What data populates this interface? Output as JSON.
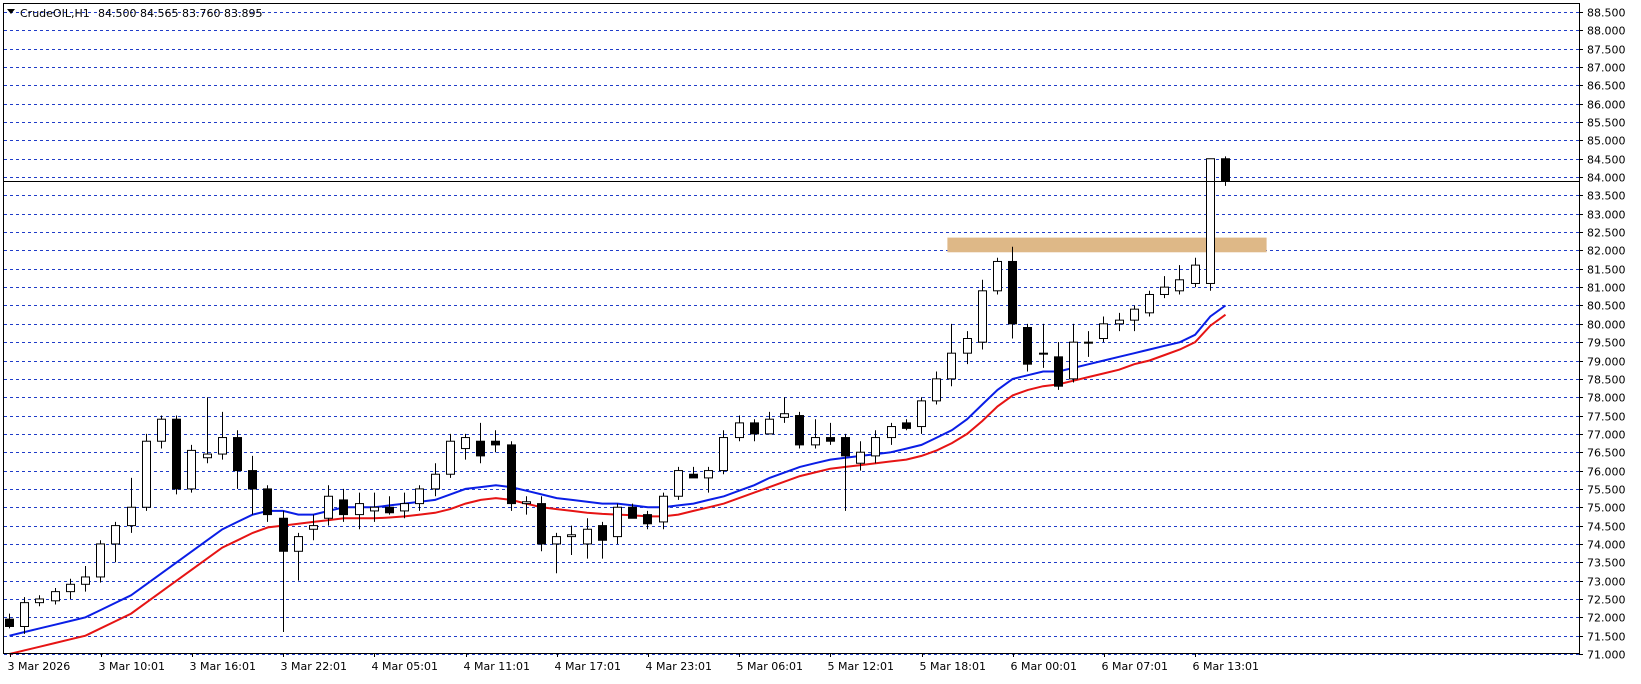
{
  "header": {
    "symbol": "CrudeOIL,H1",
    "ohlc": "84.500 84.565 83.760 83.895"
  },
  "colors": {
    "background": "#ffffff",
    "grid": "#1f3cc8",
    "bull_body": "#ffffff",
    "bear_body": "#000000",
    "candle_outline": "#000000",
    "ma_fast": "#0a1ee6",
    "ma_slow": "#e61414",
    "zone": "#deb887",
    "current_price_line": "#000000"
  },
  "chart_data": {
    "type": "candlestick",
    "timeframe": "H1",
    "ylim": [
      71.0,
      88.6
    ],
    "y_tick_step": 0.5,
    "y_ticks": [
      "88.500",
      "88.000",
      "87.500",
      "87.000",
      "86.500",
      "86.000",
      "85.500",
      "85.000",
      "84.500",
      "84.000",
      "83.500",
      "83.000",
      "82.500",
      "82.000",
      "81.500",
      "81.000",
      "80.500",
      "80.000",
      "79.500",
      "79.000",
      "78.500",
      "78.000",
      "77.500",
      "77.000",
      "76.500",
      "76.000",
      "75.500",
      "75.000",
      "74.500",
      "74.000",
      "73.500",
      "73.000",
      "72.500",
      "72.000",
      "71.500",
      "71.000"
    ],
    "x_labels": [
      "3 Mar 2026",
      "3 Mar 10:01",
      "3 Mar 16:01",
      "3 Mar 22:01",
      "4 Mar 05:01",
      "4 Mar 11:01",
      "4 Mar 17:01",
      "4 Mar 23:01",
      "5 Mar 06:01",
      "5 Mar 12:01",
      "5 Mar 18:01",
      "6 Mar 00:01",
      "6 Mar 07:01",
      "6 Mar 13:01"
    ],
    "x_label_every": 6,
    "current_price": 83.895,
    "candles": [
      {
        "o": 71.95,
        "h": 72.1,
        "l": 71.7,
        "c": 71.75
      },
      {
        "o": 71.75,
        "h": 72.55,
        "l": 71.55,
        "c": 72.4
      },
      {
        "o": 72.4,
        "h": 72.6,
        "l": 72.3,
        "c": 72.5
      },
      {
        "o": 72.45,
        "h": 72.8,
        "l": 72.35,
        "c": 72.7
      },
      {
        "o": 72.7,
        "h": 73.05,
        "l": 72.5,
        "c": 72.9
      },
      {
        "o": 72.9,
        "h": 73.4,
        "l": 72.7,
        "c": 73.1
      },
      {
        "o": 73.1,
        "h": 74.1,
        "l": 72.95,
        "c": 74.0
      },
      {
        "o": 74.0,
        "h": 74.6,
        "l": 73.5,
        "c": 74.5
      },
      {
        "o": 74.5,
        "h": 75.8,
        "l": 74.3,
        "c": 75.0
      },
      {
        "o": 75.0,
        "h": 77.0,
        "l": 74.9,
        "c": 76.8
      },
      {
        "o": 76.8,
        "h": 77.5,
        "l": 76.6,
        "c": 77.4
      },
      {
        "o": 77.4,
        "h": 77.5,
        "l": 75.35,
        "c": 75.5
      },
      {
        "o": 75.5,
        "h": 76.7,
        "l": 75.4,
        "c": 76.55
      },
      {
        "o": 76.35,
        "h": 78.0,
        "l": 76.2,
        "c": 76.45
      },
      {
        "o": 76.45,
        "h": 77.6,
        "l": 76.3,
        "c": 76.9
      },
      {
        "o": 76.9,
        "h": 77.1,
        "l": 75.5,
        "c": 76.0
      },
      {
        "o": 76.0,
        "h": 76.4,
        "l": 74.8,
        "c": 75.5
      },
      {
        "o": 75.5,
        "h": 75.6,
        "l": 74.6,
        "c": 74.8
      },
      {
        "o": 74.7,
        "h": 74.9,
        "l": 71.6,
        "c": 73.8
      },
      {
        "o": 73.8,
        "h": 74.3,
        "l": 73.0,
        "c": 74.2
      },
      {
        "o": 74.4,
        "h": 74.8,
        "l": 74.1,
        "c": 74.5
      },
      {
        "o": 74.7,
        "h": 75.6,
        "l": 74.5,
        "c": 75.3
      },
      {
        "o": 75.2,
        "h": 75.5,
        "l": 74.6,
        "c": 74.8
      },
      {
        "o": 74.8,
        "h": 75.4,
        "l": 74.4,
        "c": 75.1
      },
      {
        "o": 74.9,
        "h": 75.4,
        "l": 74.6,
        "c": 75.0
      },
      {
        "o": 75.0,
        "h": 75.3,
        "l": 74.8,
        "c": 74.85
      },
      {
        "o": 74.9,
        "h": 75.4,
        "l": 74.7,
        "c": 75.1
      },
      {
        "o": 75.1,
        "h": 75.6,
        "l": 74.9,
        "c": 75.5
      },
      {
        "o": 75.5,
        "h": 76.2,
        "l": 75.3,
        "c": 75.9
      },
      {
        "o": 75.9,
        "h": 77.0,
        "l": 75.8,
        "c": 76.8
      },
      {
        "o": 76.6,
        "h": 77.0,
        "l": 76.3,
        "c": 76.9
      },
      {
        "o": 76.8,
        "h": 77.3,
        "l": 76.2,
        "c": 76.4
      },
      {
        "o": 76.8,
        "h": 77.1,
        "l": 76.5,
        "c": 76.7
      },
      {
        "o": 76.7,
        "h": 76.8,
        "l": 74.9,
        "c": 75.1
      },
      {
        "o": 75.1,
        "h": 75.3,
        "l": 74.8,
        "c": 75.15
      },
      {
        "o": 75.1,
        "h": 75.3,
        "l": 73.8,
        "c": 74.0
      },
      {
        "o": 74.0,
        "h": 74.3,
        "l": 73.2,
        "c": 74.2
      },
      {
        "o": 74.2,
        "h": 74.5,
        "l": 73.7,
        "c": 74.25
      },
      {
        "o": 74.0,
        "h": 74.7,
        "l": 73.6,
        "c": 74.4
      },
      {
        "o": 74.5,
        "h": 74.6,
        "l": 73.6,
        "c": 74.1
      },
      {
        "o": 74.2,
        "h": 75.1,
        "l": 74.0,
        "c": 75.0
      },
      {
        "o": 75.0,
        "h": 75.1,
        "l": 74.8,
        "c": 74.7
      },
      {
        "o": 74.8,
        "h": 74.9,
        "l": 74.4,
        "c": 74.55
      },
      {
        "o": 74.6,
        "h": 75.4,
        "l": 74.4,
        "c": 75.3
      },
      {
        "o": 75.3,
        "h": 76.1,
        "l": 75.2,
        "c": 76.0
      },
      {
        "o": 75.9,
        "h": 76.1,
        "l": 75.8,
        "c": 75.8
      },
      {
        "o": 75.8,
        "h": 76.1,
        "l": 75.4,
        "c": 76.0
      },
      {
        "o": 76.0,
        "h": 77.1,
        "l": 75.9,
        "c": 76.9
      },
      {
        "o": 76.9,
        "h": 77.5,
        "l": 76.8,
        "c": 77.3
      },
      {
        "o": 77.3,
        "h": 77.4,
        "l": 76.8,
        "c": 77.0
      },
      {
        "o": 77.0,
        "h": 77.6,
        "l": 77.0,
        "c": 77.4
      },
      {
        "o": 77.45,
        "h": 78.0,
        "l": 77.3,
        "c": 77.55
      },
      {
        "o": 77.5,
        "h": 77.6,
        "l": 76.6,
        "c": 76.7
      },
      {
        "o": 76.7,
        "h": 77.4,
        "l": 76.6,
        "c": 76.9
      },
      {
        "o": 76.9,
        "h": 77.3,
        "l": 76.7,
        "c": 76.8
      },
      {
        "o": 76.9,
        "h": 77.0,
        "l": 74.9,
        "c": 76.4
      },
      {
        "o": 76.2,
        "h": 76.8,
        "l": 76.0,
        "c": 76.5
      },
      {
        "o": 76.4,
        "h": 77.1,
        "l": 76.2,
        "c": 76.9
      },
      {
        "o": 76.9,
        "h": 77.3,
        "l": 76.7,
        "c": 77.2
      },
      {
        "o": 77.3,
        "h": 77.4,
        "l": 77.1,
        "c": 77.15
      },
      {
        "o": 77.2,
        "h": 78.0,
        "l": 77.0,
        "c": 77.9
      },
      {
        "o": 77.9,
        "h": 78.7,
        "l": 77.8,
        "c": 78.5
      },
      {
        "o": 78.5,
        "h": 80.0,
        "l": 78.3,
        "c": 79.2
      },
      {
        "o": 79.2,
        "h": 79.8,
        "l": 78.9,
        "c": 79.6
      },
      {
        "o": 79.5,
        "h": 81.2,
        "l": 79.3,
        "c": 80.9
      },
      {
        "o": 80.9,
        "h": 81.8,
        "l": 80.8,
        "c": 81.7
      },
      {
        "o": 81.7,
        "h": 82.1,
        "l": 79.6,
        "c": 80.0
      },
      {
        "o": 79.9,
        "h": 80.0,
        "l": 78.7,
        "c": 78.9
      },
      {
        "o": 79.2,
        "h": 80.0,
        "l": 78.8,
        "c": 79.2
      },
      {
        "o": 79.1,
        "h": 79.5,
        "l": 78.2,
        "c": 78.3
      },
      {
        "o": 78.5,
        "h": 80.0,
        "l": 78.4,
        "c": 79.5
      },
      {
        "o": 79.5,
        "h": 79.8,
        "l": 79.1,
        "c": 79.5
      },
      {
        "o": 79.6,
        "h": 80.2,
        "l": 79.5,
        "c": 80.0
      },
      {
        "o": 80.0,
        "h": 80.3,
        "l": 79.8,
        "c": 80.1
      },
      {
        "o": 80.1,
        "h": 80.5,
        "l": 79.8,
        "c": 80.4
      },
      {
        "o": 80.3,
        "h": 80.9,
        "l": 80.2,
        "c": 80.8
      },
      {
        "o": 80.8,
        "h": 81.3,
        "l": 80.7,
        "c": 81.0
      },
      {
        "o": 80.9,
        "h": 81.6,
        "l": 80.8,
        "c": 81.2
      },
      {
        "o": 81.1,
        "h": 81.8,
        "l": 81.0,
        "c": 81.6
      },
      {
        "o": 81.1,
        "h": 84.5,
        "l": 80.9,
        "c": 84.5
      },
      {
        "o": 84.5,
        "h": 84.565,
        "l": 83.76,
        "c": 83.895
      }
    ],
    "moving_averages": [
      {
        "color_key": "ma_fast",
        "values": [
          71.5,
          71.6,
          71.7,
          71.8,
          71.9,
          72.0,
          72.2,
          72.4,
          72.6,
          72.9,
          73.2,
          73.5,
          73.8,
          74.1,
          74.4,
          74.6,
          74.8,
          74.9,
          74.9,
          74.8,
          74.8,
          74.9,
          75.0,
          75.0,
          75.0,
          75.05,
          75.1,
          75.15,
          75.2,
          75.35,
          75.5,
          75.55,
          75.6,
          75.55,
          75.45,
          75.35,
          75.25,
          75.2,
          75.15,
          75.1,
          75.1,
          75.05,
          75.0,
          75.0,
          75.05,
          75.1,
          75.2,
          75.3,
          75.45,
          75.6,
          75.8,
          75.95,
          76.1,
          76.2,
          76.3,
          76.35,
          76.4,
          76.45,
          76.5,
          76.6,
          76.7,
          76.9,
          77.1,
          77.4,
          77.8,
          78.2,
          78.5,
          78.6,
          78.7,
          78.7,
          78.8,
          78.9,
          79.0,
          79.1,
          79.2,
          79.3,
          79.4,
          79.5,
          79.7,
          80.2,
          80.5
        ]
      },
      {
        "color_key": "ma_slow",
        "values": [
          71.0,
          71.1,
          71.2,
          71.3,
          71.4,
          71.5,
          71.7,
          71.9,
          72.1,
          72.4,
          72.7,
          73.0,
          73.3,
          73.6,
          73.9,
          74.1,
          74.3,
          74.45,
          74.5,
          74.55,
          74.6,
          74.65,
          74.7,
          74.7,
          74.7,
          74.72,
          74.75,
          74.8,
          74.85,
          74.95,
          75.1,
          75.2,
          75.25,
          75.2,
          75.1,
          75.0,
          74.95,
          74.9,
          74.85,
          74.82,
          74.8,
          74.78,
          74.75,
          74.75,
          74.8,
          74.9,
          75.0,
          75.1,
          75.25,
          75.4,
          75.55,
          75.7,
          75.85,
          75.95,
          76.05,
          76.1,
          76.15,
          76.2,
          76.25,
          76.3,
          76.4,
          76.55,
          76.75,
          77.0,
          77.35,
          77.75,
          78.05,
          78.2,
          78.3,
          78.35,
          78.45,
          78.55,
          78.65,
          78.75,
          78.9,
          79.0,
          79.15,
          79.3,
          79.5,
          79.95,
          80.25
        ]
      }
    ],
    "zone": {
      "start_index": 62,
      "end_index": 83,
      "low": 81.95,
      "high": 82.35
    }
  }
}
